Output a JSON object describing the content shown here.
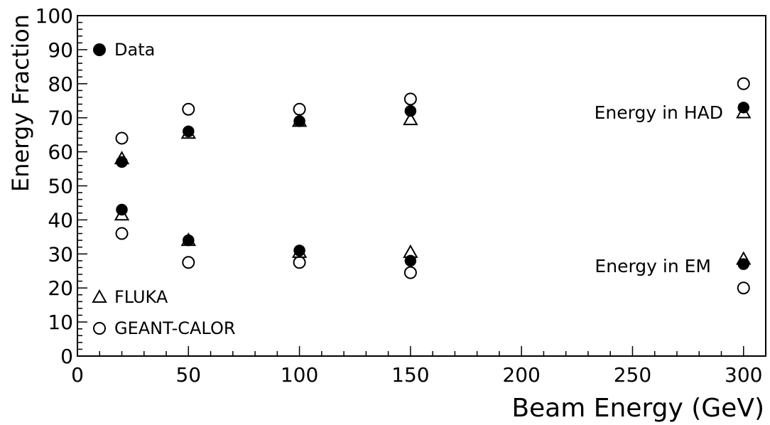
{
  "chart_data": {
    "type": "scatter",
    "xlabel": "Beam Energy (GeV)",
    "ylabel": "Energy Fraction",
    "xlim": [
      0,
      310
    ],
    "ylim": [
      0,
      100
    ],
    "x_ticks": [
      "0",
      "50",
      "100",
      "150",
      "200",
      "250",
      "300"
    ],
    "y_ticks": [
      "0",
      "10",
      "20",
      "30",
      "40",
      "50",
      "60",
      "70",
      "80",
      "90",
      "100"
    ],
    "legend": {
      "data": "Data",
      "fluka": "FLUKA",
      "geant": "GEANT-CALOR"
    },
    "annotations": {
      "had": "Energy in HAD",
      "em": "Energy in EM"
    },
    "series": [
      {
        "name": "Data",
        "marker": "filled-circle",
        "points": [
          {
            "x": 20,
            "y": 57
          },
          {
            "x": 50,
            "y": 66
          },
          {
            "x": 100,
            "y": 69
          },
          {
            "x": 150,
            "y": 72
          },
          {
            "x": 300,
            "y": 73
          },
          {
            "x": 20,
            "y": 43
          },
          {
            "x": 50,
            "y": 34
          },
          {
            "x": 100,
            "y": 31
          },
          {
            "x": 150,
            "y": 28
          },
          {
            "x": 300,
            "y": 27
          }
        ]
      },
      {
        "name": "FLUKA",
        "marker": "open-triangle",
        "points": [
          {
            "x": 20,
            "y": 58
          },
          {
            "x": 50,
            "y": 65.5
          },
          {
            "x": 100,
            "y": 69
          },
          {
            "x": 150,
            "y": 69.5
          },
          {
            "x": 300,
            "y": 71.5
          },
          {
            "x": 20,
            "y": 41.5
          },
          {
            "x": 50,
            "y": 34
          },
          {
            "x": 100,
            "y": 30.5
          },
          {
            "x": 150,
            "y": 30.5
          },
          {
            "x": 300,
            "y": 28.5
          }
        ]
      },
      {
        "name": "GEANT-CALOR",
        "marker": "open-circle",
        "points": [
          {
            "x": 20,
            "y": 64
          },
          {
            "x": 50,
            "y": 72.5
          },
          {
            "x": 100,
            "y": 72.5
          },
          {
            "x": 150,
            "y": 75.5
          },
          {
            "x": 300,
            "y": 80
          },
          {
            "x": 20,
            "y": 36
          },
          {
            "x": 50,
            "y": 27.5
          },
          {
            "x": 100,
            "y": 27.5
          },
          {
            "x": 150,
            "y": 24.5
          },
          {
            "x": 300,
            "y": 20
          }
        ]
      }
    ]
  }
}
